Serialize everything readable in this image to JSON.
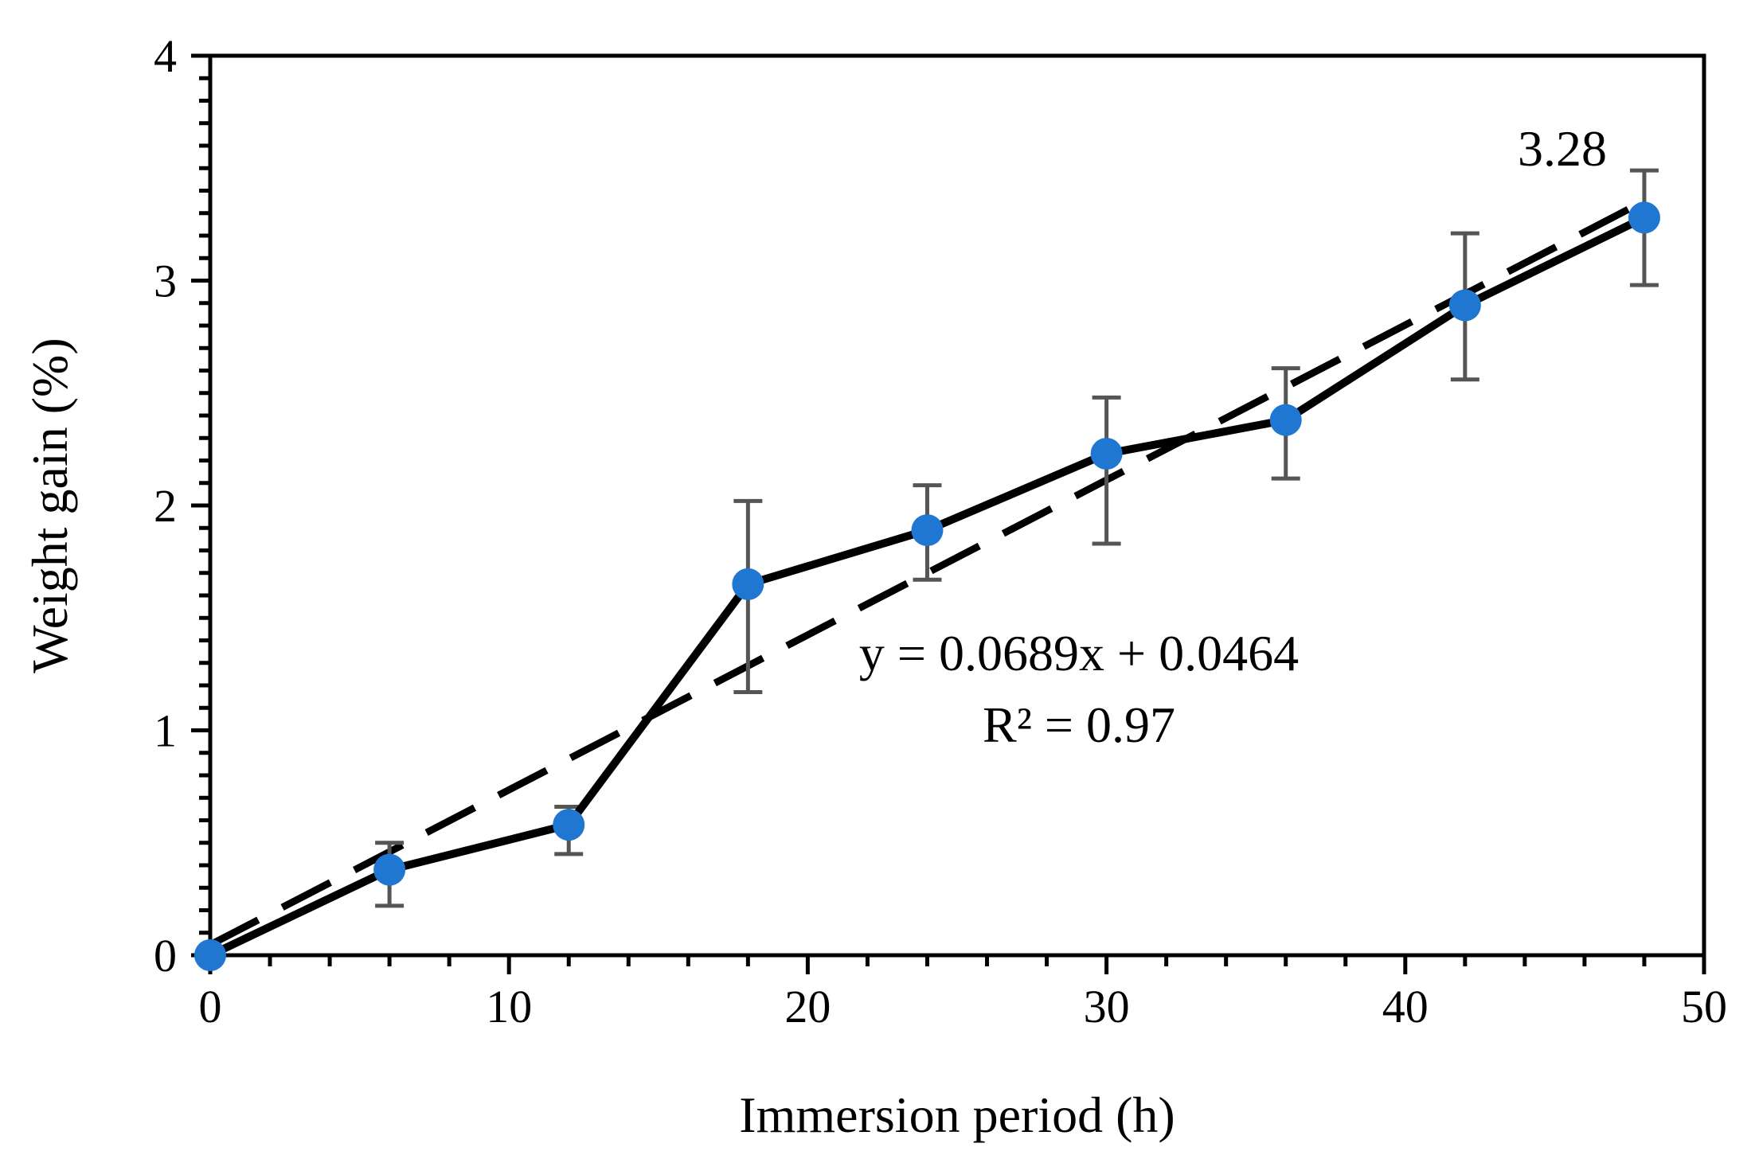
{
  "chart_data": {
    "type": "line",
    "title": "",
    "xlabel": "Immersion period (h)",
    "ylabel": "Weight gain (%)",
    "xlim": [
      0,
      50
    ],
    "ylim": [
      0,
      4
    ],
    "x_ticks": [
      0,
      10,
      20,
      30,
      40,
      50
    ],
    "x_tick_labels": [
      "0",
      "10",
      "20",
      "30",
      "40",
      "50"
    ],
    "y_ticks": [
      0,
      1,
      2,
      3,
      4
    ],
    "y_tick_labels": [
      "0",
      "1",
      "2",
      "3",
      "4"
    ],
    "grid": false,
    "series": [
      {
        "name": "Weight gain",
        "x": [
          0,
          6,
          12,
          18,
          24,
          30,
          36,
          42,
          48
        ],
        "y": [
          0,
          0.38,
          0.58,
          1.65,
          1.89,
          2.23,
          2.38,
          2.89,
          3.28
        ],
        "err_low": [
          0,
          0.16,
          0.13,
          0.48,
          0.22,
          0.4,
          0.26,
          0.33,
          0.3
        ],
        "err_high": [
          0,
          0.12,
          0.08,
          0.37,
          0.2,
          0.25,
          0.23,
          0.32,
          0.21
        ]
      }
    ],
    "trendline": {
      "type": "linear",
      "slope": 0.0689,
      "intercept": 0.0464,
      "x_range": [
        0,
        48
      ]
    },
    "annotations": {
      "equation": "y = 0.0689x + 0.0464",
      "r_squared": "R² = 0.97",
      "last_value_label": "3.28"
    },
    "colors": {
      "marker": "#1f77d2",
      "line": "#000000",
      "error_bar": "#555555",
      "trendline": "#000000"
    }
  }
}
